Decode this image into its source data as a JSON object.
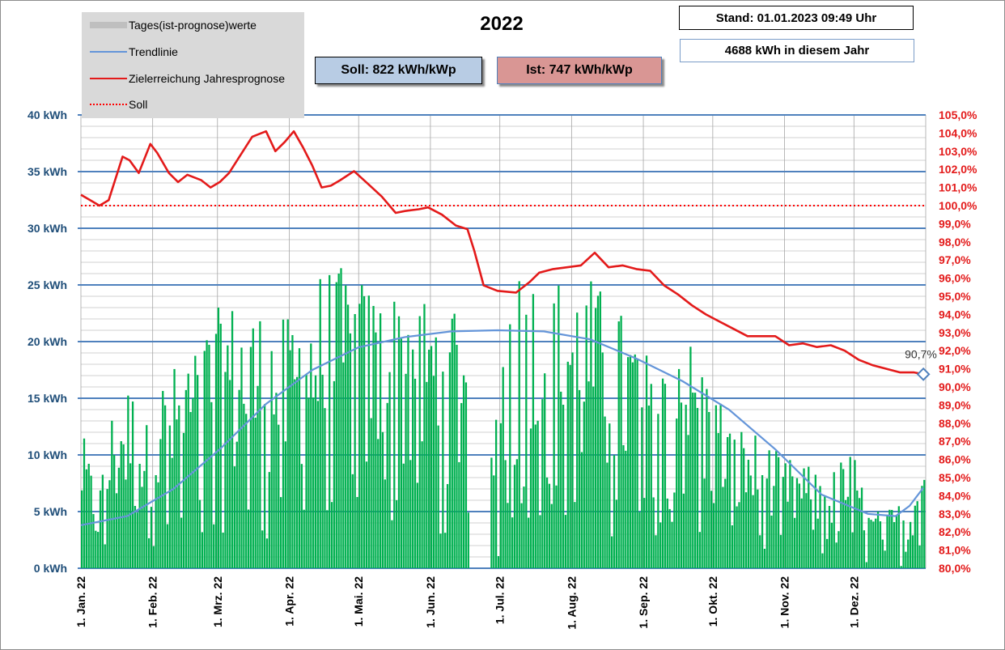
{
  "title": "2022",
  "stand": "Stand: 01.01.2023  09:49 Uhr",
  "jahr": "4688  kWh  in  diesem  Jahr",
  "soll_box": "Soll:  822  kWh/kWp",
  "ist_box": "Ist:  747  kWh/kWp",
  "colors": {
    "bars": "#00b050",
    "trend": "#6495d9",
    "target": "#e31a1a",
    "soll": "#ff0000",
    "axis_left": "#1f4e79",
    "axis_right": "#e31a1a",
    "major_grid": "#4f81bd",
    "minor_grid": "#a6a6a6",
    "box_soll": "#b8cce4",
    "box_ist": "#d99694"
  },
  "legend": [
    {
      "label": "Tages(ist-prognose)werte",
      "icon": "gray-bar"
    },
    {
      "label": "Trendlinie",
      "icon": "blue-line"
    },
    {
      "label": "Zielerreichung Jahresprognose",
      "icon": "red-line"
    },
    {
      "label": "Soll",
      "icon": "red-dotted-line"
    }
  ],
  "chart_data": {
    "type": "bar",
    "title": "2022",
    "y_left": {
      "min": 0,
      "max": 40,
      "step": 5,
      "unit": "kWh",
      "tick_labels": [
        "0 kWh",
        "5 kWh",
        "10 kWh",
        "15 kWh",
        "20 kWh",
        "25 kWh",
        "30 kWh",
        "35 kWh",
        "40 kWh"
      ]
    },
    "y_right": {
      "min": 80,
      "max": 105,
      "step": 1,
      "tick_labels": [
        "80,0%",
        "81,0%",
        "82,0%",
        "83,0%",
        "84,0%",
        "85,0%",
        "86,0%",
        "87,0%",
        "88,0%",
        "89,0%",
        "90,0%",
        "91,0%",
        "92,0%",
        "93,0%",
        "94,0%",
        "95,0%",
        "96,0%",
        "97,0%",
        "98,0%",
        "99,0%",
        "100,0%",
        "101,0%",
        "102,0%",
        "103,0%",
        "104,0%",
        "105,0%"
      ]
    },
    "x": {
      "days": 365,
      "month_labels": [
        "1. Jan. 22",
        "1. Feb. 22",
        "1. Mrz. 22",
        "1. Apr. 22",
        "1. Mai. 22",
        "1. Jun. 22",
        "1. Jul. 22",
        "1. Aug. 22",
        "1. Sep. 22",
        "1. Okt. 22",
        "1. Nov. 22",
        "1. Dez. 22"
      ],
      "month_start_day": [
        0,
        31,
        59,
        90,
        120,
        151,
        181,
        212,
        243,
        273,
        304,
        334
      ]
    },
    "daily_kwh_envelope": [
      [
        0,
        12.3
      ],
      [
        7,
        6.5
      ],
      [
        14,
        15.2
      ],
      [
        21,
        16.5
      ],
      [
        28,
        13
      ],
      [
        35,
        17
      ],
      [
        45,
        19
      ],
      [
        55,
        22
      ],
      [
        62,
        23.8
      ],
      [
        70,
        23.5
      ],
      [
        80,
        23
      ],
      [
        88,
        22
      ],
      [
        96,
        24
      ],
      [
        104,
        26.8
      ],
      [
        112,
        26.6
      ],
      [
        118,
        26
      ],
      [
        126,
        25
      ],
      [
        134,
        24.5
      ],
      [
        142,
        26.3
      ],
      [
        150,
        23.5
      ],
      [
        158,
        25
      ],
      [
        166,
        24
      ],
      [
        172,
        0
      ],
      [
        182,
        22
      ],
      [
        186,
        28
      ],
      [
        196,
        26.6
      ],
      [
        205,
        26
      ],
      [
        212,
        26
      ],
      [
        220,
        25.8
      ],
      [
        228,
        24
      ],
      [
        236,
        22
      ],
      [
        244,
        21
      ],
      [
        250,
        22
      ],
      [
        258,
        23
      ],
      [
        266,
        19
      ],
      [
        272,
        17
      ],
      [
        282,
        13
      ],
      [
        292,
        12
      ],
      [
        302,
        10
      ],
      [
        312,
        9.3
      ],
      [
        322,
        8
      ],
      [
        333,
        11
      ],
      [
        340,
        5
      ],
      [
        348,
        5.3
      ],
      [
        355,
        6
      ],
      [
        364,
        11
      ]
    ],
    "gap_days": [
      168,
      176
    ],
    "trend_kwh": [
      [
        0,
        3.8
      ],
      [
        20,
        4.6
      ],
      [
        40,
        7.0
      ],
      [
        60,
        10.5
      ],
      [
        80,
        14.5
      ],
      [
        100,
        17.5
      ],
      [
        120,
        19.5
      ],
      [
        140,
        20.4
      ],
      [
        160,
        20.9
      ],
      [
        180,
        21.0
      ],
      [
        200,
        20.9
      ],
      [
        220,
        20.2
      ],
      [
        240,
        18.5
      ],
      [
        260,
        16.5
      ],
      [
        280,
        14
      ],
      [
        300,
        10.5
      ],
      [
        320,
        6.5
      ],
      [
        340,
        4.8
      ],
      [
        352,
        4.6
      ],
      [
        358,
        5.5
      ],
      [
        364,
        7.1
      ]
    ],
    "zielerreichung_pct": [
      [
        0,
        100.6
      ],
      [
        4,
        100.3
      ],
      [
        8,
        100.0
      ],
      [
        12,
        100.3
      ],
      [
        18,
        102.7
      ],
      [
        21,
        102.5
      ],
      [
        25,
        101.8
      ],
      [
        30,
        103.4
      ],
      [
        33,
        102.9
      ],
      [
        38,
        101.8
      ],
      [
        42,
        101.3
      ],
      [
        46,
        101.7
      ],
      [
        52,
        101.4
      ],
      [
        56,
        101.0
      ],
      [
        60,
        101.3
      ],
      [
        64,
        101.8
      ],
      [
        68,
        102.6
      ],
      [
        74,
        103.8
      ],
      [
        80,
        104.1
      ],
      [
        84,
        103.0
      ],
      [
        88,
        103.5
      ],
      [
        92,
        104.1
      ],
      [
        96,
        103.2
      ],
      [
        100,
        102.2
      ],
      [
        104,
        101.0
      ],
      [
        108,
        101.1
      ],
      [
        112,
        101.4
      ],
      [
        118,
        101.9
      ],
      [
        124,
        101.2
      ],
      [
        130,
        100.5
      ],
      [
        136,
        99.6
      ],
      [
        140,
        99.7
      ],
      [
        146,
        99.8
      ],
      [
        150,
        99.9
      ],
      [
        156,
        99.5
      ],
      [
        162,
        98.9
      ],
      [
        167,
        98.7
      ],
      [
        170,
        97.5
      ],
      [
        174,
        95.6
      ],
      [
        180,
        95.3
      ],
      [
        188,
        95.2
      ],
      [
        194,
        95.8
      ],
      [
        198,
        96.3
      ],
      [
        204,
        96.5
      ],
      [
        210,
        96.6
      ],
      [
        216,
        96.7
      ],
      [
        222,
        97.4
      ],
      [
        228,
        96.6
      ],
      [
        234,
        96.7
      ],
      [
        240,
        96.5
      ],
      [
        246,
        96.4
      ],
      [
        252,
        95.6
      ],
      [
        258,
        95.1
      ],
      [
        264,
        94.5
      ],
      [
        270,
        94.0
      ],
      [
        276,
        93.6
      ],
      [
        282,
        93.2
      ],
      [
        288,
        92.8
      ],
      [
        294,
        92.8
      ],
      [
        300,
        92.8
      ],
      [
        306,
        92.3
      ],
      [
        312,
        92.4
      ],
      [
        318,
        92.2
      ],
      [
        324,
        92.3
      ],
      [
        330,
        92.0
      ],
      [
        336,
        91.5
      ],
      [
        342,
        91.2
      ],
      [
        348,
        91.0
      ],
      [
        354,
        90.8
      ],
      [
        360,
        90.8
      ],
      [
        364,
        90.7
      ]
    ],
    "end_annotation": {
      "label": "90,7%",
      "day": 364,
      "value": 90.7
    },
    "soll_line_pct": 100.0
  }
}
